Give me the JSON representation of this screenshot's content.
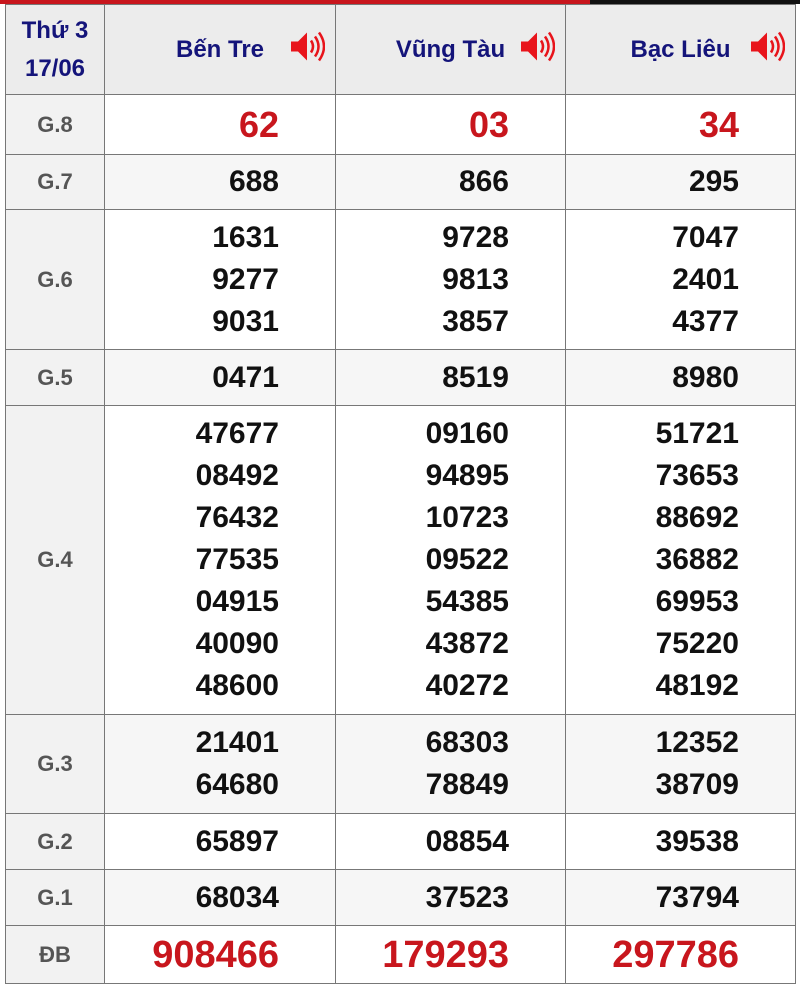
{
  "header": {
    "weekday": "Thứ 3",
    "date": "17/06"
  },
  "provinces": [
    "Bến Tre",
    "Vũng Tàu",
    "Bạc Liêu"
  ],
  "icons": {
    "speaker": "speaker-icon",
    "speaker_color": "#e8141b"
  },
  "colors": {
    "accent_red": "#c8161d",
    "header_text": "#14147a"
  },
  "prizes": [
    {
      "label": "G.8",
      "values": [
        [
          "62"
        ],
        [
          "03"
        ],
        [
          "34"
        ]
      ]
    },
    {
      "label": "G.7",
      "values": [
        [
          "688"
        ],
        [
          "866"
        ],
        [
          "295"
        ]
      ]
    },
    {
      "label": "G.6",
      "values": [
        [
          "1631",
          "9277",
          "9031"
        ],
        [
          "9728",
          "9813",
          "3857"
        ],
        [
          "7047",
          "2401",
          "4377"
        ]
      ]
    },
    {
      "label": "G.5",
      "values": [
        [
          "0471"
        ],
        [
          "8519"
        ],
        [
          "8980"
        ]
      ]
    },
    {
      "label": "G.4",
      "values": [
        [
          "47677",
          "08492",
          "76432",
          "77535",
          "04915",
          "40090",
          "48600"
        ],
        [
          "09160",
          "94895",
          "10723",
          "09522",
          "54385",
          "43872",
          "40272"
        ],
        [
          "51721",
          "73653",
          "88692",
          "36882",
          "69953",
          "75220",
          "48192"
        ]
      ]
    },
    {
      "label": "G.3",
      "values": [
        [
          "21401",
          "64680"
        ],
        [
          "68303",
          "78849"
        ],
        [
          "12352",
          "38709"
        ]
      ]
    },
    {
      "label": "G.2",
      "values": [
        [
          "65897"
        ],
        [
          "08854"
        ],
        [
          "39538"
        ]
      ]
    },
    {
      "label": "G.1",
      "values": [
        [
          "68034"
        ],
        [
          "37523"
        ],
        [
          "73794"
        ]
      ]
    },
    {
      "label": "ĐB",
      "values": [
        [
          "908466"
        ],
        [
          "179293"
        ],
        [
          "297786"
        ]
      ]
    }
  ]
}
